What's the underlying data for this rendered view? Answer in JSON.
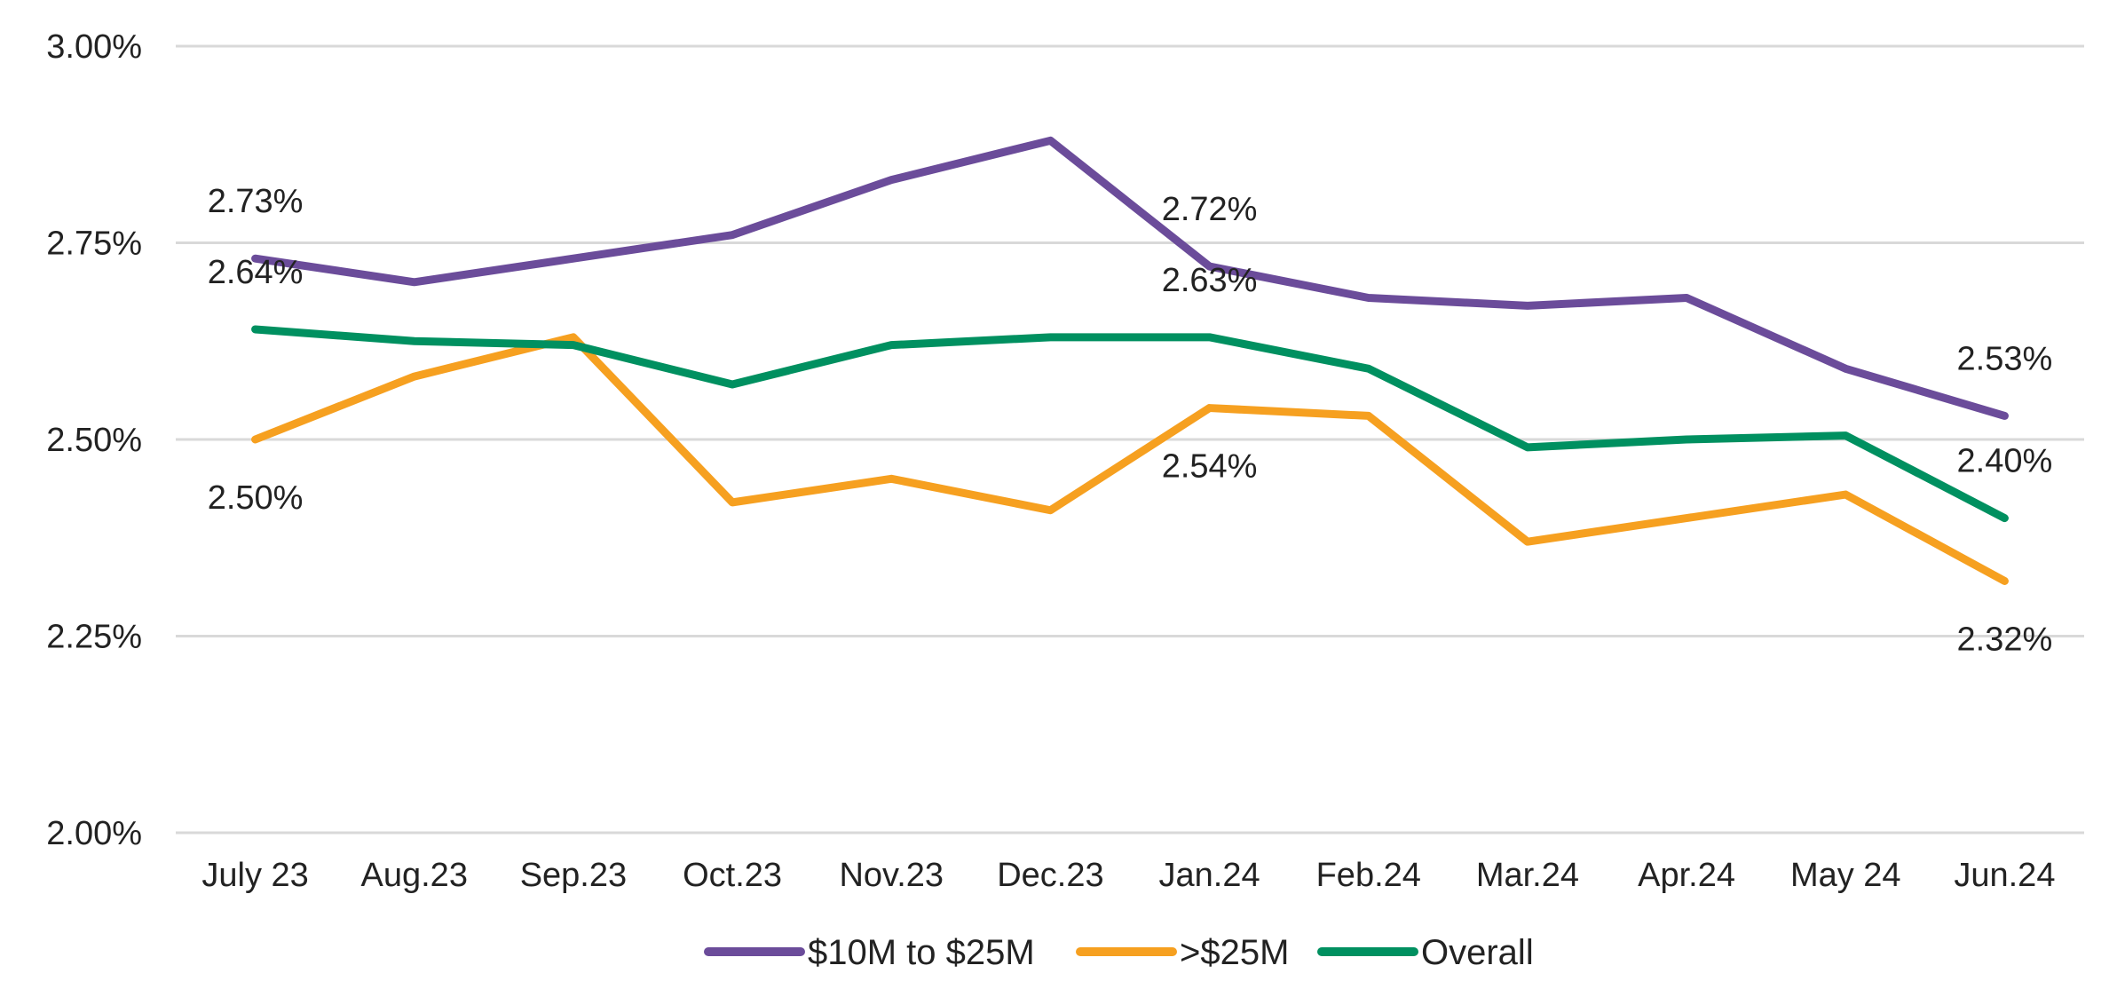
{
  "chart_data": {
    "type": "line",
    "title": "",
    "xlabel": "",
    "ylabel": "",
    "categories": [
      "July 23",
      "Aug.23",
      "Sep.23",
      "Oct.23",
      "Nov.23",
      "Dec.23",
      "Jan.24",
      "Feb.24",
      "Mar.24",
      "Apr.24",
      "May 24",
      "Jun.24"
    ],
    "ylim": [
      2.0,
      3.0
    ],
    "yticks": [
      2.0,
      2.25,
      2.5,
      2.75,
      3.0
    ],
    "ytick_labels": [
      "2.00%",
      "2.25%",
      "2.50%",
      "2.75%",
      "3.00%"
    ],
    "grid": true,
    "legend_position": "bottom",
    "series": [
      {
        "name": "$10M to $25M",
        "color": "#6b4c9a",
        "values": [
          2.73,
          2.7,
          2.73,
          2.76,
          2.83,
          2.88,
          2.72,
          2.68,
          2.67,
          2.68,
          2.59,
          2.53
        ],
        "labels": [
          {
            "index": 0,
            "text": "2.73%",
            "placement": "above"
          },
          {
            "index": 6,
            "text": "2.72%",
            "placement": "above"
          },
          {
            "index": 11,
            "text": "2.53%",
            "placement": "above"
          }
        ]
      },
      {
        "name": ">$25M",
        "color": "#f6a020",
        "values": [
          2.5,
          2.58,
          2.63,
          2.42,
          2.45,
          2.41,
          2.54,
          2.53,
          2.37,
          2.4,
          2.43,
          2.32
        ],
        "labels": [
          {
            "index": 0,
            "text": "2.50%",
            "placement": "below"
          },
          {
            "index": 6,
            "text": "2.54%",
            "placement": "below"
          },
          {
            "index": 11,
            "text": "2.32%",
            "placement": "below"
          }
        ]
      },
      {
        "name": "Overall",
        "color": "#009060",
        "values": [
          2.64,
          2.625,
          2.62,
          2.57,
          2.62,
          2.63,
          2.63,
          2.59,
          2.49,
          2.5,
          2.505,
          2.4
        ],
        "labels": [
          {
            "index": 0,
            "text": "2.64%",
            "placement": "above"
          },
          {
            "index": 6,
            "text": "2.63%",
            "placement": "above"
          },
          {
            "index": 11,
            "text": "2.40%",
            "placement": "above"
          }
        ]
      }
    ]
  }
}
